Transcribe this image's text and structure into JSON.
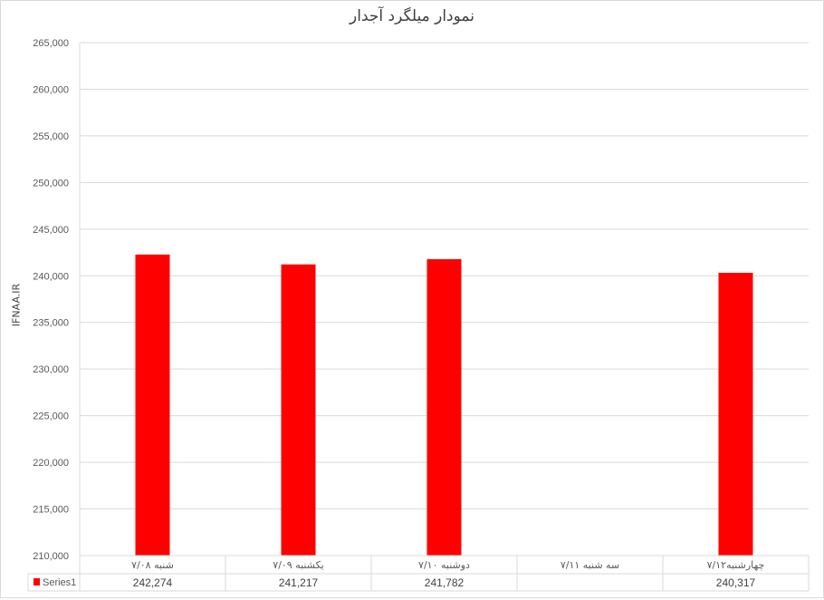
{
  "chart_data": {
    "type": "bar",
    "title": "نمودار میلگرد آجدار",
    "ylabel": "IFNAA.IR",
    "xlabel": "",
    "ylim": [
      210000,
      265000
    ],
    "ytick_step": 5000,
    "yticks": [
      "210,000",
      "215,000",
      "220,000",
      "225,000",
      "230,000",
      "235,000",
      "240,000",
      "245,000",
      "250,000",
      "255,000",
      "260,000",
      "265,000"
    ],
    "grid": true,
    "categories": [
      "شنبه ۷/۰۸",
      "یکشنبه ۷/۰۹",
      "دوشنبه ۷/۱۰",
      "سه شنبه ۷/۱۱",
      "چهارشنبه۷/۱۲"
    ],
    "series": [
      {
        "name": "Series1",
        "color": "#ff0000",
        "values": [
          242274,
          241217,
          241782,
          null,
          240317
        ]
      }
    ],
    "data_table": {
      "legend": "Series1",
      "values": [
        "242,274",
        "241,217",
        "241,782",
        "",
        "240,317"
      ]
    }
  }
}
